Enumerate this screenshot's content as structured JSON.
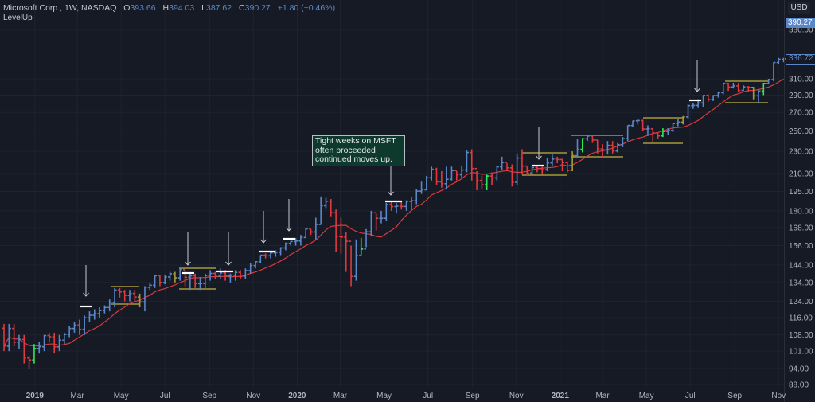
{
  "header": {
    "symbol": "Microsoft Corp., 1W, NASDAQ",
    "open_label": "O",
    "open": "393.66",
    "high_label": "H",
    "high": "394.03",
    "low_label": "L",
    "low": "387.62",
    "close_label": "C",
    "close": "390.27",
    "change": "+1.80 (+0.46%)",
    "indicator": "LevelUp"
  },
  "currency_button": "USD",
  "price_labels": {
    "current": "390.27",
    "last_bar": "336.72"
  },
  "annotation": {
    "text": "Tight weeks on MSFT often proceeded continued moves up."
  },
  "colors": {
    "background": "#161a25",
    "up": "#5b87c9",
    "down": "#e0393e",
    "tight_week": "#2ee858",
    "highlight": "#a59a3a",
    "moving_average": "#d93a3a",
    "marker": "#ffffff",
    "note_bg": "#0d3a2d"
  },
  "chart_data": {
    "type": "ohlc-bar",
    "interval": "1W",
    "y_scale": "log",
    "ylim": [
      86,
      400
    ],
    "grid": true,
    "y_ticks": [
      "88.00",
      "94.00",
      "101.00",
      "108.00",
      "116.00",
      "124.00",
      "134.00",
      "144.00",
      "156.00",
      "168.00",
      "180.00",
      "195.00",
      "210.00",
      "230.00",
      "250.00",
      "270.00",
      "290.00",
      "310.00",
      "380.00"
    ],
    "x_ticks": [
      {
        "label": "2019",
        "date": "2019-01-01"
      },
      {
        "label": "Mar",
        "date": "2019-03-01"
      },
      {
        "label": "May",
        "date": "2019-05-01"
      },
      {
        "label": "Jul",
        "date": "2019-07-01"
      },
      {
        "label": "Sep",
        "date": "2019-09-01"
      },
      {
        "label": "Nov",
        "date": "2019-11-01"
      },
      {
        "label": "2020",
        "date": "2020-01-01"
      },
      {
        "label": "Mar",
        "date": "2020-03-01"
      },
      {
        "label": "May",
        "date": "2020-05-01"
      },
      {
        "label": "Jul",
        "date": "2020-07-01"
      },
      {
        "label": "Sep",
        "date": "2020-09-01"
      },
      {
        "label": "Nov",
        "date": "2020-11-01"
      },
      {
        "label": "2021",
        "date": "2021-01-01"
      },
      {
        "label": "Mar",
        "date": "2021-03-01"
      },
      {
        "label": "May",
        "date": "2021-05-01"
      },
      {
        "label": "Jul",
        "date": "2021-07-01"
      },
      {
        "label": "Sep",
        "date": "2021-09-01"
      },
      {
        "label": "Nov",
        "date": "2021-11-01"
      }
    ],
    "first_open": 111,
    "close": [
      103.1,
      110.9,
      104.8,
      106.0,
      98.2,
      97.4,
      102.1,
      102.8,
      107.7,
      107.2,
      102.8,
      105.7,
      108.2,
      110.9,
      112.5,
      110.5,
      115.9,
      117.1,
      117.9,
      119.4,
      120.9,
      123.4,
      129.9,
      128.9,
      127.1,
      128.1,
      126.2,
      123.7,
      131.4,
      132.5,
      137.8,
      134.0,
      137.1,
      138.9,
      136.6,
      141.3,
      136.9,
      137.7,
      133.4,
      133.4,
      137.9,
      139.1,
      137.5,
      139.4,
      137.7,
      138.1,
      139.7,
      137.4,
      140.7,
      143.7,
      145.96,
      149.97,
      149.6,
      151.4,
      151.75,
      154.5,
      157.4,
      158.67,
      159.0,
      161.3,
      167.1,
      165.0,
      170.2,
      183.9,
      187.3,
      178.6,
      162.0,
      161.6,
      158.8,
      137.4,
      149.7,
      153.8,
      165.1,
      178.6,
      174.6,
      174.6,
      184.7,
      183.2,
      183.5,
      183.3,
      187.2,
      187.7,
      195.2,
      196.3,
      206.3,
      213.7,
      202.9,
      201.3,
      205.0,
      212.5,
      208.9,
      213.0,
      228.9,
      214.3,
      204.0,
      200.4,
      207.8,
      206.2,
      215.8,
      219.7,
      214.9,
      202.5,
      223.7,
      216.5,
      210.4,
      215.2,
      214.4,
      213.3,
      219.3,
      222.8,
      222.4,
      219.6,
      212.7,
      225.95,
      231.96,
      242.2,
      244.99,
      240.97,
      232.38,
      231.6,
      235.75,
      230.35,
      236.48,
      242.35,
      255.85,
      260.74,
      261.15,
      252.18,
      252.46,
      248.15,
      245.17,
      249.68,
      250.79,
      257.89,
      259.43,
      265.02,
      277.65,
      277.94,
      280.75,
      289.67,
      284.91,
      289.46,
      292.85,
      304.36,
      299.72,
      301.14,
      295.71,
      299.87,
      299.35,
      289.1,
      294.85,
      304.21,
      309.16,
      331.62,
      336.06,
      336.72
    ],
    "high": [
      113,
      113,
      113,
      108,
      108,
      99,
      104,
      105,
      108,
      109,
      109,
      108,
      109,
      112,
      114,
      115,
      117,
      119,
      120,
      121,
      122,
      125,
      131,
      131,
      130,
      130,
      130,
      128,
      132,
      134,
      138,
      138,
      138,
      140,
      140,
      142,
      141,
      139,
      139,
      137,
      139,
      141,
      140,
      142,
      141,
      139,
      141,
      141,
      142,
      145,
      146,
      150,
      151,
      152,
      153,
      155,
      158,
      159,
      161,
      163,
      168,
      167,
      175,
      191,
      190,
      189,
      181,
      175,
      165,
      156,
      160,
      161,
      167,
      180,
      178,
      180,
      186,
      187,
      186,
      187,
      188,
      191,
      197,
      203,
      208,
      216,
      215,
      212,
      216,
      216,
      212,
      217,
      231,
      232,
      212,
      208,
      209,
      211,
      217,
      225,
      219,
      218,
      228,
      232,
      216,
      216,
      217,
      216,
      224,
      227,
      225,
      223,
      220,
      230,
      242,
      243,
      246,
      246,
      241,
      237,
      240,
      240,
      238,
      244,
      256,
      261,
      263,
      262,
      256,
      252,
      248,
      253,
      253,
      259,
      263,
      266,
      279,
      281,
      285,
      290,
      291,
      290,
      294,
      305,
      305,
      305,
      305,
      302,
      301,
      300,
      296,
      305,
      310,
      332,
      338,
      338
    ],
    "low": [
      101,
      101,
      103,
      102,
      96,
      94,
      96,
      100,
      101,
      105,
      100,
      101,
      104,
      107,
      109,
      108,
      108,
      114,
      115,
      116,
      118,
      119,
      121,
      126,
      124,
      124,
      124,
      121,
      119,
      130,
      131,
      132,
      133,
      135,
      134,
      135,
      132,
      130,
      131,
      130,
      131,
      135,
      136,
      136,
      135,
      134,
      135,
      136,
      136,
      139,
      142,
      145,
      148,
      148,
      149,
      150,
      153,
      156,
      156,
      156,
      161,
      163,
      160,
      170,
      182,
      176,
      152,
      151,
      140,
      132,
      135,
      150,
      155,
      162,
      166,
      171,
      173,
      180,
      178,
      181,
      180,
      181,
      185,
      193,
      196,
      204,
      200,
      198,
      197,
      204,
      204,
      206,
      211,
      204,
      196,
      197,
      196,
      200,
      204,
      213,
      212,
      199,
      200,
      209,
      208,
      210,
      211,
      209,
      212,
      217,
      219,
      212,
      211,
      212,
      224,
      229,
      240,
      238,
      228,
      224,
      227,
      228,
      229,
      234,
      240,
      254,
      257,
      250,
      245,
      239,
      242,
      244,
      246,
      249,
      255,
      257,
      263,
      274,
      275,
      276,
      282,
      283,
      287,
      291,
      295,
      298,
      294,
      295,
      294,
      285,
      280,
      290,
      303,
      307,
      329,
      332
    ],
    "tight_week_bars": [
      6,
      71,
      96,
      115,
      131,
      151
    ],
    "highlight_bars": [
      27,
      34,
      113,
      135,
      149
    ]
  }
}
